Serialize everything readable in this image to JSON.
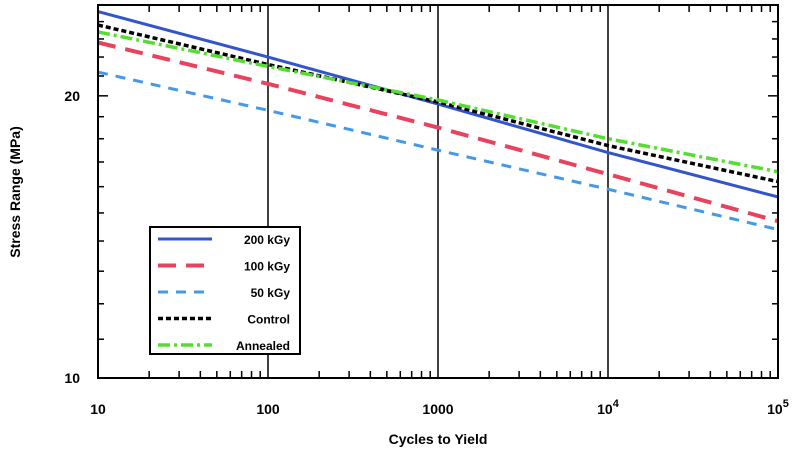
{
  "chart_data": {
    "type": "line",
    "xlabel": "Cycles to Yield",
    "ylabel": "Stress Range (MPa)",
    "xscale": "log",
    "yscale": "log",
    "xlim": [
      10,
      100000
    ],
    "ylim": [
      10,
      25
    ],
    "x_tick_labels": [
      "10",
      "100",
      "1000",
      "10^4",
      "10^5"
    ],
    "y_tick_labels": [
      "10",
      "20"
    ],
    "grid": "vertical lines at each decade",
    "legend_position": "lower-left",
    "x": [
      10,
      100,
      1000,
      10000,
      100000
    ],
    "series": [
      {
        "name": "200 kGy",
        "color": "#3355cc",
        "style": "solid",
        "values": [
          24.6,
          22.0,
          19.6,
          17.4,
          15.6
        ]
      },
      {
        "name": "100 kGy",
        "color": "#e8435e",
        "style": "long-dash",
        "values": [
          22.8,
          20.6,
          18.5,
          16.5,
          14.7
        ]
      },
      {
        "name": "50 kGy",
        "color": "#4499e8",
        "style": "dash",
        "values": [
          21.2,
          19.3,
          17.5,
          15.9,
          14.4
        ]
      },
      {
        "name": "Control",
        "color": "#000000",
        "style": "short-dash",
        "values": [
          23.8,
          21.6,
          19.7,
          17.7,
          16.2
        ]
      },
      {
        "name": "Annealed",
        "color": "#55dd33",
        "style": "dash-dot",
        "values": [
          23.4,
          21.5,
          19.8,
          18.0,
          16.6
        ]
      }
    ]
  }
}
